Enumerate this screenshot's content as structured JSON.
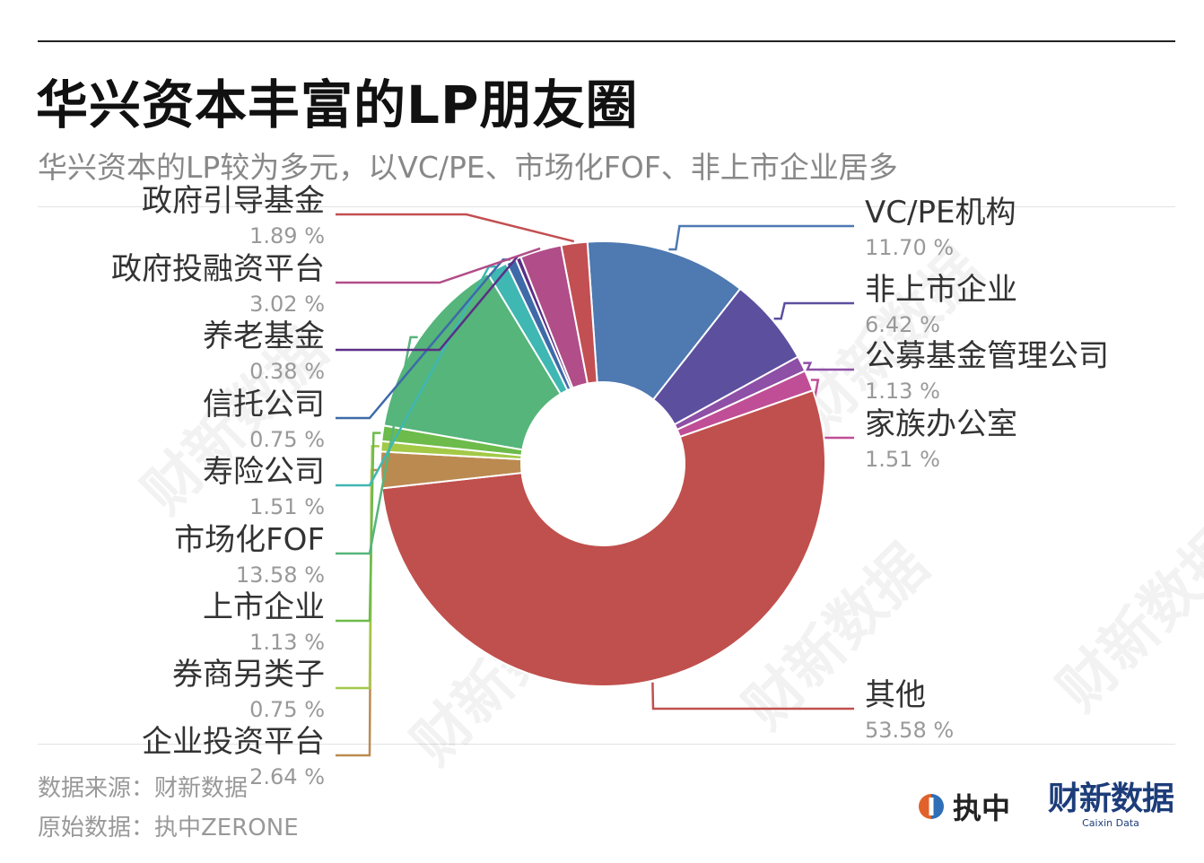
{
  "title": "华兴资本丰富的LP朋友圈",
  "subtitle": "华兴资本的LP较为多元，以VC/PE、市场化FOF、非上市企业居多",
  "footer": {
    "source": "数据来源：财新数据",
    "original": "原始数据：执中ZERONE"
  },
  "brands": {
    "zerone": "执中",
    "caixin_cn": "财新数据",
    "caixin_en": "Caixin Data"
  },
  "watermark_text": "财新数据",
  "chart_data": {
    "type": "pie",
    "subtype": "donut",
    "title": "华兴资本丰富的LP朋友圈",
    "value_suffix": " %",
    "slices": [
      {
        "label": "VC/PE机构",
        "value": 11.7,
        "value_text": "11.70 %",
        "color": "#4e79b1",
        "side": "right"
      },
      {
        "label": "非上市企业",
        "value": 6.42,
        "value_text": "6.42 %",
        "color": "#5c4f9e",
        "side": "right"
      },
      {
        "label": "公募基金管理公司",
        "value": 1.13,
        "value_text": "1.13 %",
        "color": "#8e4fa6",
        "side": "right"
      },
      {
        "label": "家族办公室",
        "value": 1.51,
        "value_text": "1.51 %",
        "color": "#c04e96",
        "side": "right"
      },
      {
        "label": "其他",
        "value": 53.58,
        "value_text": "53.58 %",
        "color": "#c0504d",
        "side": "right"
      },
      {
        "label": "企业投资平台",
        "value": 2.64,
        "value_text": "2.64 %",
        "color": "#bb8a51",
        "side": "left"
      },
      {
        "label": "券商另类子",
        "value": 0.75,
        "value_text": "0.75 %",
        "color": "#a3c947",
        "side": "left"
      },
      {
        "label": "上市企业",
        "value": 1.13,
        "value_text": "1.13 %",
        "color": "#6dbb4b",
        "side": "left"
      },
      {
        "label": "市场化FOF",
        "value": 13.58,
        "value_text": "13.58 %",
        "color": "#55b57a",
        "side": "left"
      },
      {
        "label": "寿险公司",
        "value": 1.51,
        "value_text": "1.51 %",
        "color": "#3fb7b3",
        "side": "left"
      },
      {
        "label": "信托公司",
        "value": 0.75,
        "value_text": "0.75 %",
        "color": "#3e6aa8",
        "side": "left"
      },
      {
        "label": "养老基金",
        "value": 0.38,
        "value_text": "0.38 %",
        "color": "#5b2f86",
        "side": "left"
      },
      {
        "label": "政府投融资平台",
        "value": 3.02,
        "value_text": "3.02 %",
        "color": "#b14d88",
        "side": "left"
      },
      {
        "label": "政府引导基金",
        "value": 1.89,
        "value_text": "1.89 %",
        "color": "#c24f52",
        "side": "left"
      }
    ]
  }
}
